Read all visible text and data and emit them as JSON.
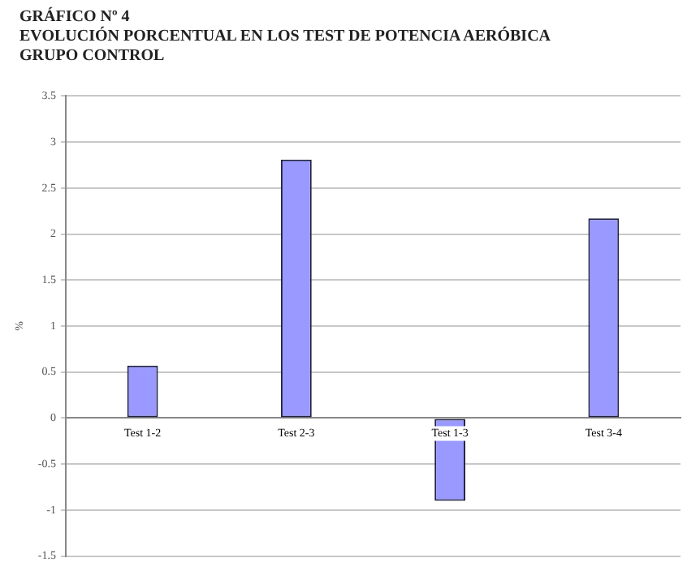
{
  "chart_data": {
    "type": "bar",
    "title": "GRÁFICO Nº 4",
    "subtitle": "EVOLUCIÓN PORCENTUAL EN LOS TEST DE POTENCIA AERÓBICA\nGRUPO CONTROL",
    "ylabel": "%",
    "categories": [
      "Test 1-2",
      "Test 2-3",
      "Test 1-3",
      "Test 3-4"
    ],
    "values": [
      0.57,
      2.81,
      -0.9,
      2.17
    ],
    "color": "#9999ff",
    "ylim": [
      -1.5,
      3.5
    ],
    "yticks": [
      -1.5,
      -1,
      -0.5,
      0,
      0.5,
      1,
      1.5,
      2,
      2.5,
      3,
      3.5
    ],
    "grid": "y",
    "legend": false
  }
}
